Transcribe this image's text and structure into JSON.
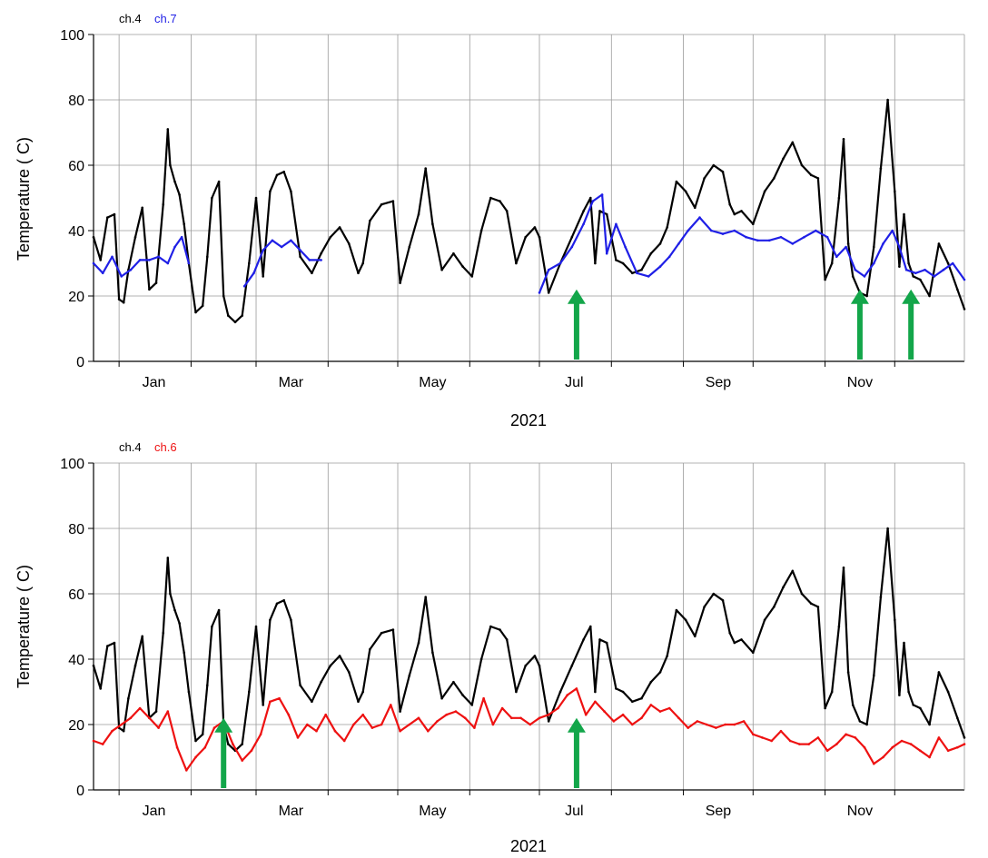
{
  "colors": {
    "ch4": "#000000",
    "ch7": "#1f1fe6",
    "ch6": "#ee1111",
    "arrow": "#13a64a",
    "grid": "#9a9a9a",
    "axis": "#000000"
  },
  "chart_data": [
    {
      "type": "line",
      "title": "",
      "legend": [
        {
          "name": "ch.4",
          "color": "#000000"
        },
        {
          "name": "ch.7",
          "color": "#1f1fe6"
        }
      ],
      "xlabel": "2021",
      "ylabel": "Temperature ( C)",
      "xlim": [
        "2020-12-21",
        "2021-12-31"
      ],
      "ylim": [
        0,
        100
      ],
      "yticks": [
        0,
        20,
        40,
        60,
        80,
        100
      ],
      "xticks": [
        {
          "date": "2021-01-16",
          "label": "Jan"
        },
        {
          "date": "2021-03-16",
          "label": "Mar"
        },
        {
          "date": "2021-05-16",
          "label": "May"
        },
        {
          "date": "2021-07-16",
          "label": "Jul"
        },
        {
          "date": "2021-09-16",
          "label": "Sep"
        },
        {
          "date": "2021-11-16",
          "label": "Nov"
        }
      ],
      "grid": true,
      "series": [
        {
          "name": "ch.4",
          "color": "#000000",
          "x": [
            "2020-12-21",
            "2020-12-24",
            "2020-12-27",
            "2020-12-30",
            "2021-01-01",
            "2021-01-03",
            "2021-01-05",
            "2021-01-08",
            "2021-01-11",
            "2021-01-14",
            "2021-01-17",
            "2021-01-20",
            "2021-01-22",
            "2021-01-23",
            "2021-01-25",
            "2021-01-27",
            "2021-01-29",
            "2021-01-31",
            "2021-02-03",
            "2021-02-06",
            "2021-02-08",
            "2021-02-10",
            "2021-02-13",
            "2021-02-15",
            "2021-02-17",
            "2021-02-20",
            "2021-02-23",
            "2021-02-26",
            "2021-03-01",
            "2021-03-04",
            "2021-03-07",
            "2021-03-10",
            "2021-03-13",
            "2021-03-16",
            "2021-03-20",
            "2021-03-25",
            "2021-03-29",
            "2021-04-02",
            "2021-04-06",
            "2021-04-10",
            "2021-04-14",
            "2021-04-16",
            "2021-04-19",
            "2021-04-24",
            "2021-04-29",
            "2021-05-02",
            "2021-05-06",
            "2021-05-10",
            "2021-05-13",
            "2021-05-16",
            "2021-05-20",
            "2021-05-25",
            "2021-05-29",
            "2021-06-02",
            "2021-06-06",
            "2021-06-10",
            "2021-06-14",
            "2021-06-17",
            "2021-06-21",
            "2021-06-25",
            "2021-06-29",
            "2021-07-01",
            "2021-07-05",
            "2021-07-10",
            "2021-07-15",
            "2021-07-20",
            "2021-07-23",
            "2021-07-25",
            "2021-07-27",
            "2021-07-30",
            "2021-08-03",
            "2021-08-06",
            "2021-08-10",
            "2021-08-14",
            "2021-08-18",
            "2021-08-22",
            "2021-08-25",
            "2021-08-29",
            "2021-09-02",
            "2021-09-06",
            "2021-09-10",
            "2021-09-14",
            "2021-09-18",
            "2021-09-21",
            "2021-09-23",
            "2021-09-26",
            "2021-10-01",
            "2021-10-06",
            "2021-10-10",
            "2021-10-14",
            "2021-10-18",
            "2021-10-22",
            "2021-10-26",
            "2021-10-29",
            "2021-11-01",
            "2021-11-04",
            "2021-11-07",
            "2021-11-09",
            "2021-11-11",
            "2021-11-13",
            "2021-11-16",
            "2021-11-19",
            "2021-11-22",
            "2021-11-25",
            "2021-11-28",
            "2021-12-01",
            "2021-12-03",
            "2021-12-05",
            "2021-12-07",
            "2021-12-09",
            "2021-12-12",
            "2021-12-16",
            "2021-12-20",
            "2021-12-24",
            "2021-12-28",
            "2021-12-31"
          ],
          "values": [
            38,
            31,
            44,
            45,
            19,
            18,
            28,
            38,
            47,
            22,
            24,
            48,
            71,
            60,
            55,
            51,
            42,
            30,
            15,
            17,
            32,
            50,
            55,
            20,
            14,
            12,
            14,
            30,
            50,
            26,
            52,
            57,
            58,
            52,
            32,
            27,
            33,
            38,
            41,
            36,
            27,
            30,
            43,
            48,
            49,
            24,
            35,
            45,
            59,
            42,
            28,
            33,
            29,
            26,
            40,
            50,
            49,
            46,
            30,
            38,
            41,
            38,
            21,
            30,
            38,
            46,
            50,
            30,
            46,
            45,
            31,
            30,
            27,
            28,
            33,
            36,
            41,
            55,
            52,
            47,
            56,
            60,
            58,
            48,
            45,
            46,
            42,
            52,
            56,
            62,
            67,
            60,
            57,
            56,
            25,
            30,
            50,
            68,
            36,
            26,
            21,
            20,
            35,
            59,
            80,
            52,
            29,
            45,
            30,
            26,
            25,
            20,
            36,
            30,
            22,
            16
          ]
        },
        {
          "name": "ch.7",
          "color": "#1f1fe6",
          "x": [
            "2020-12-21",
            "2020-12-25",
            "2020-12-29",
            "2021-01-02",
            "2021-01-06",
            "2021-01-10",
            "2021-01-14",
            "2021-01-18",
            "2021-01-22",
            "2021-01-25",
            "2021-01-28",
            "2021-01-31",
            "null",
            "2021-02-24",
            "2021-02-28",
            "2021-03-04",
            "2021-03-08",
            "2021-03-12",
            "2021-03-16",
            "2021-03-20",
            "2021-03-24",
            "2021-03-29",
            "null",
            "2021-07-01",
            "2021-07-05",
            "2021-07-10",
            "2021-07-15",
            "2021-07-20",
            "2021-07-24",
            "2021-07-28",
            "2021-07-30",
            "2021-08-03",
            "2021-08-07",
            "2021-08-12",
            "2021-08-17",
            "2021-08-22",
            "2021-08-26",
            "2021-08-30",
            "2021-09-03",
            "2021-09-08",
            "2021-09-13",
            "2021-09-18",
            "2021-09-23",
            "2021-09-28",
            "2021-10-03",
            "2021-10-08",
            "2021-10-13",
            "2021-10-18",
            "2021-10-23",
            "2021-10-28",
            "2021-11-02",
            "2021-11-06",
            "2021-11-10",
            "2021-11-14",
            "2021-11-18",
            "2021-11-22",
            "2021-11-26",
            "2021-11-30",
            "2021-12-03",
            "2021-12-06",
            "2021-12-10",
            "2021-12-14",
            "2021-12-18",
            "2021-12-22",
            "2021-12-26",
            "2021-12-31"
          ],
          "values": [
            30,
            27,
            32,
            26,
            28,
            31,
            31,
            32,
            30,
            35,
            38,
            30,
            null,
            23,
            27,
            34,
            37,
            35,
            37,
            34,
            31,
            31,
            null,
            21,
            28,
            30,
            35,
            42,
            49,
            51,
            33,
            42,
            35,
            27,
            26,
            29,
            32,
            36,
            40,
            44,
            40,
            39,
            40,
            38,
            37,
            37,
            38,
            36,
            38,
            40,
            38,
            32,
            35,
            28,
            26,
            30,
            36,
            40,
            35,
            28,
            27,
            28,
            26,
            28,
            30,
            25
          ]
        }
      ],
      "annotations": [
        {
          "type": "arrow",
          "x": "2021-07-17",
          "y_from": 0,
          "y_to": 22
        },
        {
          "type": "arrow",
          "x": "2021-11-16",
          "y_from": 0,
          "y_to": 22
        },
        {
          "type": "arrow",
          "x": "2021-12-08",
          "y_from": 0,
          "y_to": 22
        }
      ]
    },
    {
      "type": "line",
      "title": "",
      "legend": [
        {
          "name": "ch.4",
          "color": "#000000"
        },
        {
          "name": "ch.6",
          "color": "#ee1111"
        }
      ],
      "xlabel": "2021",
      "ylabel": "Temperature ( C)",
      "xlim": [
        "2020-12-21",
        "2021-12-31"
      ],
      "ylim": [
        0,
        100
      ],
      "yticks": [
        0,
        20,
        40,
        60,
        80,
        100
      ],
      "xticks": [
        {
          "date": "2021-01-16",
          "label": "Jan"
        },
        {
          "date": "2021-03-16",
          "label": "Mar"
        },
        {
          "date": "2021-05-16",
          "label": "May"
        },
        {
          "date": "2021-07-16",
          "label": "Jul"
        },
        {
          "date": "2021-09-16",
          "label": "Sep"
        },
        {
          "date": "2021-11-16",
          "label": "Nov"
        }
      ],
      "grid": true,
      "series": [
        {
          "name": "ch.4",
          "color": "#000000",
          "x": [
            "2020-12-21",
            "2020-12-24",
            "2020-12-27",
            "2020-12-30",
            "2021-01-01",
            "2021-01-03",
            "2021-01-05",
            "2021-01-08",
            "2021-01-11",
            "2021-01-14",
            "2021-01-17",
            "2021-01-20",
            "2021-01-22",
            "2021-01-23",
            "2021-01-25",
            "2021-01-27",
            "2021-01-29",
            "2021-01-31",
            "2021-02-03",
            "2021-02-06",
            "2021-02-08",
            "2021-02-10",
            "2021-02-13",
            "2021-02-15",
            "2021-02-17",
            "2021-02-20",
            "2021-02-23",
            "2021-02-26",
            "2021-03-01",
            "2021-03-04",
            "2021-03-07",
            "2021-03-10",
            "2021-03-13",
            "2021-03-16",
            "2021-03-20",
            "2021-03-25",
            "2021-03-29",
            "2021-04-02",
            "2021-04-06",
            "2021-04-10",
            "2021-04-14",
            "2021-04-16",
            "2021-04-19",
            "2021-04-24",
            "2021-04-29",
            "2021-05-02",
            "2021-05-06",
            "2021-05-10",
            "2021-05-13",
            "2021-05-16",
            "2021-05-20",
            "2021-05-25",
            "2021-05-29",
            "2021-06-02",
            "2021-06-06",
            "2021-06-10",
            "2021-06-14",
            "2021-06-17",
            "2021-06-21",
            "2021-06-25",
            "2021-06-29",
            "2021-07-01",
            "2021-07-05",
            "2021-07-10",
            "2021-07-15",
            "2021-07-20",
            "2021-07-23",
            "2021-07-25",
            "2021-07-27",
            "2021-07-30",
            "2021-08-03",
            "2021-08-06",
            "2021-08-10",
            "2021-08-14",
            "2021-08-18",
            "2021-08-22",
            "2021-08-25",
            "2021-08-29",
            "2021-09-02",
            "2021-09-06",
            "2021-09-10",
            "2021-09-14",
            "2021-09-18",
            "2021-09-21",
            "2021-09-23",
            "2021-09-26",
            "2021-10-01",
            "2021-10-06",
            "2021-10-10",
            "2021-10-14",
            "2021-10-18",
            "2021-10-22",
            "2021-10-26",
            "2021-10-29",
            "2021-11-01",
            "2021-11-04",
            "2021-11-07",
            "2021-11-09",
            "2021-11-11",
            "2021-11-13",
            "2021-11-16",
            "2021-11-19",
            "2021-11-22",
            "2021-11-25",
            "2021-11-28",
            "2021-12-01",
            "2021-12-03",
            "2021-12-05",
            "2021-12-07",
            "2021-12-09",
            "2021-12-12",
            "2021-12-16",
            "2021-12-20",
            "2021-12-24",
            "2021-12-28",
            "2021-12-31"
          ],
          "values": [
            38,
            31,
            44,
            45,
            19,
            18,
            28,
            38,
            47,
            22,
            24,
            48,
            71,
            60,
            55,
            51,
            42,
            30,
            15,
            17,
            32,
            50,
            55,
            20,
            14,
            12,
            14,
            30,
            50,
            26,
            52,
            57,
            58,
            52,
            32,
            27,
            33,
            38,
            41,
            36,
            27,
            30,
            43,
            48,
            49,
            24,
            35,
            45,
            59,
            42,
            28,
            33,
            29,
            26,
            40,
            50,
            49,
            46,
            30,
            38,
            41,
            38,
            21,
            30,
            38,
            46,
            50,
            30,
            46,
            45,
            31,
            30,
            27,
            28,
            33,
            36,
            41,
            55,
            52,
            47,
            56,
            60,
            58,
            48,
            45,
            46,
            42,
            52,
            56,
            62,
            67,
            60,
            57,
            56,
            25,
            30,
            50,
            68,
            36,
            26,
            21,
            20,
            35,
            59,
            80,
            52,
            29,
            45,
            30,
            26,
            25,
            20,
            36,
            30,
            22,
            16
          ]
        },
        {
          "name": "ch.6",
          "color": "#ee1111",
          "x": [
            "2020-12-21",
            "2020-12-25",
            "2020-12-29",
            "2021-01-02",
            "2021-01-06",
            "2021-01-10",
            "2021-01-14",
            "2021-01-18",
            "2021-01-22",
            "2021-01-26",
            "2021-01-30",
            "2021-02-03",
            "2021-02-07",
            "2021-02-11",
            "2021-02-15",
            "2021-02-19",
            "2021-02-23",
            "2021-02-27",
            "2021-03-03",
            "2021-03-07",
            "2021-03-11",
            "2021-03-15",
            "2021-03-19",
            "2021-03-23",
            "2021-03-27",
            "2021-03-31",
            "2021-04-04",
            "2021-04-08",
            "2021-04-12",
            "2021-04-16",
            "2021-04-20",
            "2021-04-24",
            "2021-04-28",
            "2021-05-02",
            "2021-05-06",
            "2021-05-10",
            "2021-05-14",
            "2021-05-18",
            "2021-05-22",
            "2021-05-26",
            "2021-05-30",
            "2021-06-03",
            "2021-06-07",
            "2021-06-11",
            "2021-06-15",
            "2021-06-19",
            "2021-06-23",
            "2021-06-27",
            "2021-07-01",
            "2021-07-05",
            "2021-07-09",
            "2021-07-13",
            "2021-07-17",
            "2021-07-21",
            "2021-07-25",
            "2021-07-29",
            "2021-08-02",
            "2021-08-06",
            "2021-08-10",
            "2021-08-14",
            "2021-08-18",
            "2021-08-22",
            "2021-08-26",
            "2021-08-30",
            "2021-09-03",
            "2021-09-07",
            "2021-09-11",
            "2021-09-15",
            "2021-09-19",
            "2021-09-23",
            "2021-09-27",
            "2021-10-01",
            "2021-10-05",
            "2021-10-09",
            "2021-10-13",
            "2021-10-17",
            "2021-10-21",
            "2021-10-25",
            "2021-10-29",
            "2021-11-02",
            "2021-11-06",
            "2021-11-10",
            "2021-11-14",
            "2021-11-18",
            "2021-11-22",
            "2021-11-26",
            "2021-11-30",
            "2021-12-04",
            "2021-12-08",
            "2021-12-12",
            "2021-12-16",
            "2021-12-20",
            "2021-12-24",
            "2021-12-28",
            "2021-12-31"
          ],
          "values": [
            15,
            14,
            18,
            20,
            22,
            25,
            22,
            19,
            24,
            13,
            6,
            10,
            13,
            19,
            21,
            14,
            9,
            12,
            17,
            27,
            28,
            23,
            16,
            20,
            18,
            23,
            18,
            15,
            20,
            23,
            19,
            20,
            26,
            18,
            20,
            22,
            18,
            21,
            23,
            24,
            22,
            19,
            28,
            20,
            25,
            22,
            22,
            20,
            22,
            23,
            25,
            29,
            31,
            23,
            27,
            24,
            21,
            23,
            20,
            22,
            26,
            24,
            25,
            22,
            19,
            21,
            20,
            19,
            20,
            20,
            21,
            17,
            16,
            15,
            18,
            15,
            14,
            14,
            16,
            12,
            14,
            17,
            16,
            13,
            8,
            10,
            13,
            15,
            14,
            12,
            10,
            16,
            12,
            13,
            14
          ]
        }
      ],
      "annotations": [
        {
          "type": "arrow",
          "x": "2021-02-15",
          "y_from": 0,
          "y_to": 22
        },
        {
          "type": "arrow",
          "x": "2021-07-17",
          "y_from": 0,
          "y_to": 22
        }
      ]
    }
  ]
}
